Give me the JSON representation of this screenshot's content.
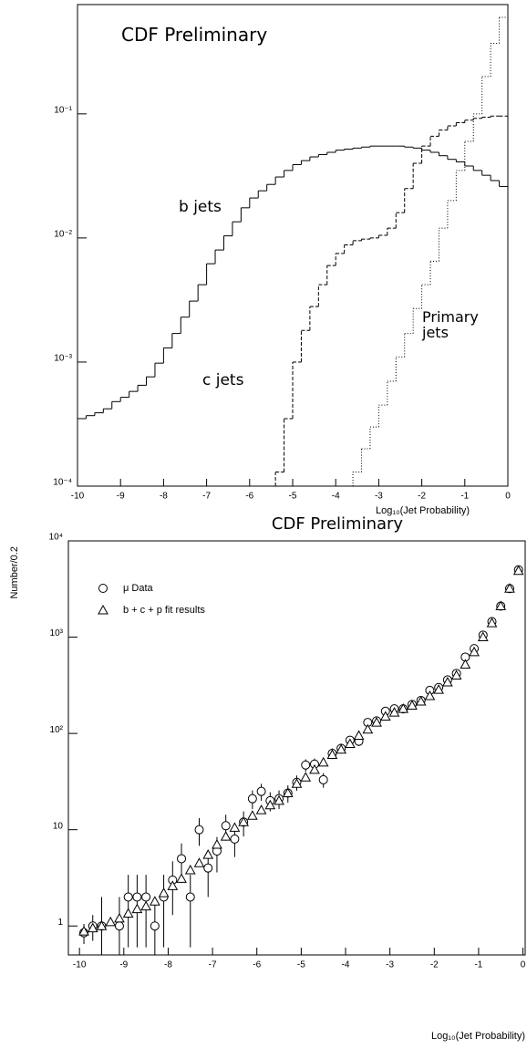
{
  "chart_data": [
    {
      "type": "histogram",
      "annotations": [
        "CDF Preliminary"
      ],
      "xlabel": "Log₁₀(Jet Probability)",
      "bins": [
        -10,
        -9.8,
        -9.6,
        -9.4,
        -9.2,
        -9,
        -8.8,
        -8.6,
        -8.4,
        -8.2,
        -8,
        -7.8,
        -7.6,
        -7.4,
        -7.2,
        -7,
        -6.8,
        -6.6,
        -6.4,
        -6.2,
        -6,
        -5.8,
        -5.6,
        -5.4,
        -5.2,
        -5,
        -4.8,
        -4.6,
        -4.4,
        -4.2,
        -4,
        -3.8,
        -3.6,
        -3.4,
        -3.2,
        -3,
        -2.8,
        -2.6,
        -2.4,
        -2.2,
        -2,
        -1.8,
        -1.6,
        -1.4,
        -1.2,
        -1,
        -0.8,
        -0.6,
        -0.4,
        -0.2,
        0
      ],
      "series": [
        {
          "name": "b jets",
          "color": "#000000",
          "linestyle": "solid",
          "values": [
            0.00035,
            0.00037,
            0.00039,
            0.00042,
            0.00048,
            0.00052,
            0.00058,
            0.00065,
            0.00076,
            0.00098,
            0.0013,
            0.0017,
            0.0023,
            0.0031,
            0.0042,
            0.0062,
            0.008,
            0.0104,
            0.0135,
            0.0175,
            0.021,
            0.024,
            0.027,
            0.031,
            0.035,
            0.039,
            0.042,
            0.045,
            0.047,
            0.049,
            0.051,
            0.052,
            0.053,
            0.054,
            0.055,
            0.055,
            0.055,
            0.055,
            0.054,
            0.053,
            0.051,
            0.049,
            0.046,
            0.043,
            0.041,
            0.038,
            0.035,
            0.032,
            0.029,
            0.026
          ]
        },
        {
          "name": "c jets",
          "color": "#000000",
          "linestyle": "dashed",
          "values": [
            null,
            null,
            null,
            null,
            null,
            null,
            null,
            null,
            null,
            null,
            null,
            null,
            null,
            null,
            null,
            null,
            null,
            null,
            null,
            null,
            null,
            null,
            null,
            0.00013,
            0.00035,
            0.001,
            0.0018,
            0.0028,
            0.0042,
            0.006,
            0.0075,
            0.0088,
            0.0095,
            0.0098,
            0.01,
            0.0105,
            0.012,
            0.016,
            0.025,
            0.04,
            0.055,
            0.066,
            0.074,
            0.08,
            0.085,
            0.089,
            0.092,
            0.094,
            0.096,
            0.096
          ]
        },
        {
          "name": "Primary jets",
          "color": "#000000",
          "linestyle": "dotted",
          "values": [
            null,
            null,
            null,
            null,
            null,
            null,
            null,
            null,
            null,
            null,
            null,
            null,
            null,
            null,
            null,
            null,
            null,
            null,
            null,
            null,
            null,
            null,
            null,
            null,
            null,
            null,
            null,
            null,
            null,
            null,
            null,
            null,
            0.00013,
            0.0002,
            0.0003,
            0.00045,
            0.0007,
            0.0011,
            0.0017,
            0.0027,
            0.0042,
            0.0065,
            0.012,
            0.02,
            0.035,
            0.06,
            0.1,
            0.2,
            0.37,
            0.6
          ]
        }
      ],
      "xlim": [
        -10,
        0
      ],
      "ylim": [
        0.0001,
        0.76
      ],
      "ylog": true,
      "xticks": [
        -10,
        -9,
        -8,
        -7,
        -6,
        -5,
        -4,
        -3,
        -2,
        -1,
        0
      ],
      "yticks": [
        {
          "value": 0.0001,
          "label": "10⁻⁴"
        },
        {
          "value": 0.001,
          "label": "10⁻³"
        },
        {
          "value": 0.01,
          "label": "10⁻²"
        },
        {
          "value": 0.1,
          "label": "10⁻¹"
        }
      ]
    },
    {
      "type": "scatter",
      "title": "CDF Preliminary",
      "ylabel": "Number/0.2",
      "xlabel": "Log₁₀(Jet Probability)",
      "x": [
        -9.9,
        -9.7,
        -9.5,
        -9.3,
        -9.1,
        -8.9,
        -8.7,
        -8.5,
        -8.3,
        -8.1,
        -7.9,
        -7.7,
        -7.5,
        -7.3,
        -7.1,
        -6.9,
        -6.7,
        -6.5,
        -6.3,
        -6.1,
        -5.9,
        -5.7,
        -5.5,
        -5.3,
        -5.1,
        -4.9,
        -4.7,
        -4.5,
        -4.3,
        -4.1,
        -3.9,
        -3.7,
        -3.5,
        -3.3,
        -3.1,
        -2.9,
        -2.7,
        -2.5,
        -2.3,
        -2.1,
        -1.9,
        -1.7,
        -1.5,
        -1.3,
        -1.1,
        -0.9,
        -0.7,
        -0.5,
        -0.3,
        -0.1
      ],
      "series": [
        {
          "name": "μ Data",
          "marker": "circle",
          "color": "#000000",
          "values": [
            0.85,
            1.0,
            1.0,
            null,
            1.0,
            2,
            2,
            2,
            1,
            2,
            3,
            5,
            2,
            10,
            4,
            6,
            11,
            8,
            12,
            21,
            25,
            20,
            21,
            24,
            31,
            47,
            48,
            33,
            62,
            70,
            85,
            83,
            130,
            135,
            170,
            180,
            180,
            200,
            220,
            280,
            300,
            360,
            420,
            620,
            760,
            1050,
            1450,
            2100,
            3200,
            5000
          ],
          "errors": [
            0.2,
            0.3,
            1.0,
            null,
            1.0,
            1.4,
            1.4,
            1.4,
            1,
            1.4,
            1.7,
            2.2,
            1.4,
            3.2,
            2,
            2.4,
            3.3,
            2.8,
            3.5,
            4.6,
            5,
            4.5,
            4.6,
            4.9,
            5.6,
            6.9,
            6.9,
            5.7,
            7.9,
            8.4,
            9.2,
            9.1,
            11,
            12,
            13,
            13,
            13,
            14,
            15,
            17,
            17,
            19,
            20,
            25,
            28,
            32,
            38,
            46,
            57,
            71
          ]
        },
        {
          "name": "b + c + p fit results",
          "marker": "triangle",
          "color": "#000000",
          "values": [
            0.88,
            0.95,
            1.0,
            1.1,
            1.2,
            1.35,
            1.5,
            1.6,
            1.8,
            2.2,
            2.6,
            3.1,
            3.8,
            4.5,
            5.5,
            7,
            8.5,
            10.5,
            12,
            14,
            16,
            18,
            20,
            24,
            30,
            35,
            42,
            50,
            60,
            68,
            78,
            95,
            110,
            130,
            150,
            165,
            180,
            195,
            215,
            245,
            285,
            340,
            400,
            520,
            700,
            1000,
            1400,
            2100,
            3200,
            4900
          ]
        }
      ],
      "xlim": [
        -10.25,
        0.05
      ],
      "ylim": [
        0.5,
        10000
      ],
      "ylog": true,
      "xticks": [
        -10,
        -9,
        -8,
        -7,
        -6,
        -5,
        -4,
        -3,
        -2,
        -1,
        0
      ],
      "yticks": [
        1,
        10,
        {
          "value": 100,
          "label": "10²"
        },
        {
          "value": 1000,
          "label": "10³"
        },
        {
          "value": 10000,
          "label": "10⁴"
        }
      ],
      "legend": "upper left"
    }
  ]
}
